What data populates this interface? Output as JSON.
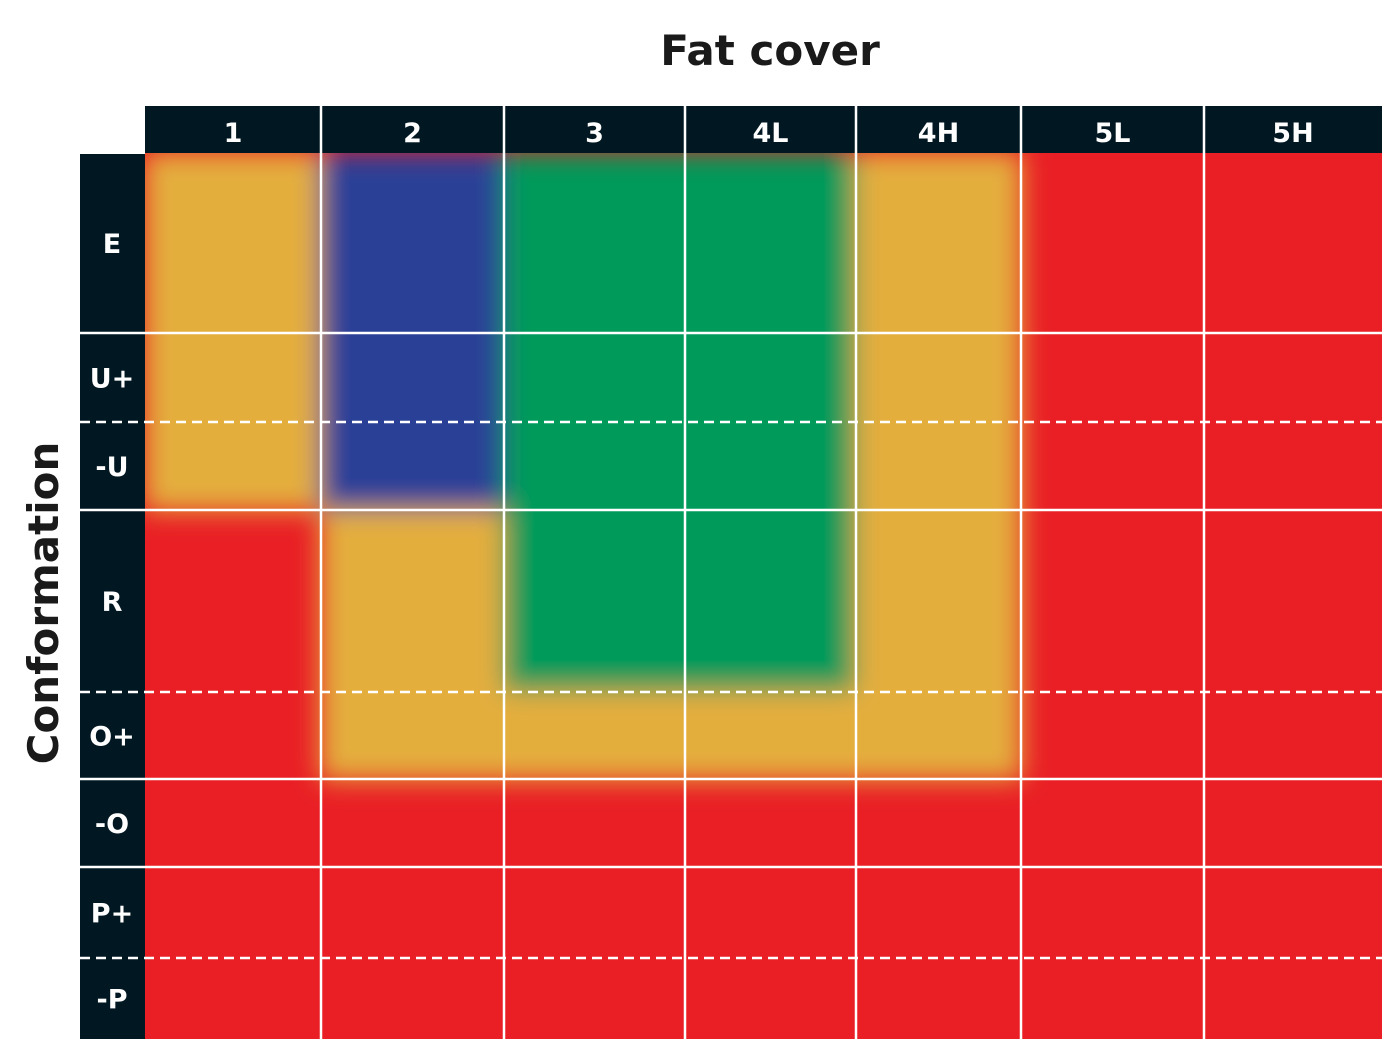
{
  "chart_data": {
    "type": "heatmap",
    "title": "Fat cover",
    "xlabel": "Fat cover",
    "ylabel": "Conformation",
    "x_categories": [
      "1",
      "2",
      "3",
      "4L",
      "4H",
      "5L",
      "5H"
    ],
    "y_categories": [
      "E",
      "U+",
      "-U",
      "R",
      "O+",
      "-O",
      "P+",
      "-P"
    ],
    "color_scale": {
      "blue": "#2a3f97",
      "green": "#039a5a",
      "amber": "#e4ae3c",
      "red": "#e91f25"
    },
    "values": [
      [
        "amber",
        "blue",
        "green",
        "green",
        "amber",
        "red",
        "red"
      ],
      [
        "amber",
        "blue",
        "green",
        "green",
        "amber",
        "red",
        "red"
      ],
      [
        "amber",
        "blue",
        "green",
        "green",
        "amber",
        "red",
        "red"
      ],
      [
        "red",
        "amber",
        "green",
        "green",
        "amber",
        "red",
        "red"
      ],
      [
        "red",
        "amber",
        "amber",
        "amber",
        "amber",
        "red",
        "red"
      ],
      [
        "red",
        "red",
        "red",
        "red",
        "red",
        "red",
        "red"
      ],
      [
        "red",
        "red",
        "red",
        "red",
        "red",
        "red",
        "red"
      ],
      [
        "red",
        "red",
        "red",
        "red",
        "red",
        "red",
        "red"
      ]
    ],
    "grid": true,
    "header_color": "#011722",
    "gridline_color": "#ffffff"
  }
}
